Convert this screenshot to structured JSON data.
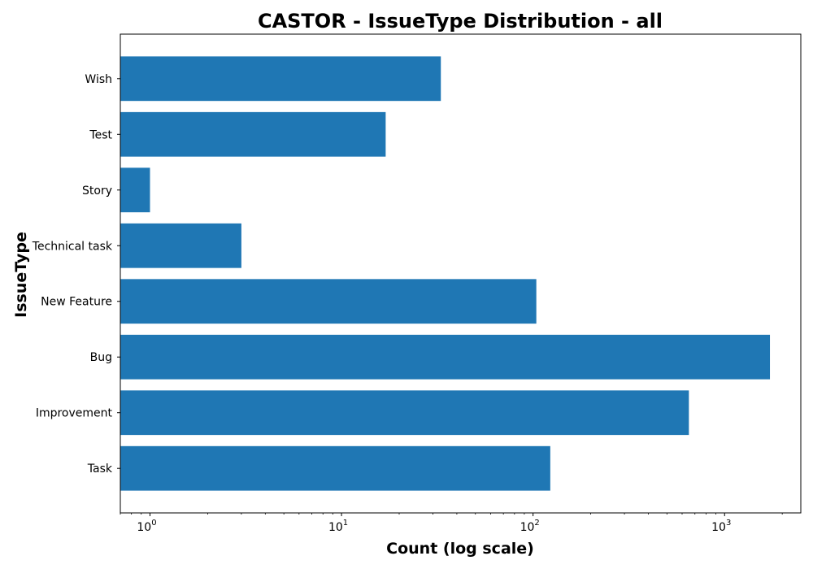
{
  "chart_data": {
    "type": "bar",
    "orientation": "horizontal",
    "title": "CASTOR - IssueType Distribution - all",
    "xlabel": "Count (log scale)",
    "ylabel": "IssueType",
    "x_scale": "log",
    "xlim": [
      0.7,
      2500
    ],
    "x_ticks": [
      {
        "value": 1,
        "base": "10",
        "exp": "0"
      },
      {
        "value": 10,
        "base": "10",
        "exp": "1"
      },
      {
        "value": 100,
        "base": "10",
        "exp": "2"
      },
      {
        "value": 1000,
        "base": "10",
        "exp": "3"
      }
    ],
    "categories": [
      "Task",
      "Improvement",
      "Bug",
      "New Feature",
      "Technical task",
      "Story",
      "Test",
      "Wish"
    ],
    "values": [
      123,
      651,
      1725,
      104,
      3,
      1,
      17,
      33
    ],
    "bar_color": "#1f77b4",
    "grid": false,
    "legend": "none"
  }
}
